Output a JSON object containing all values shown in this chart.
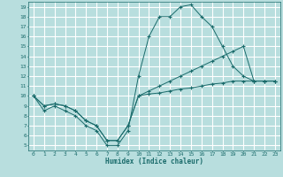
{
  "xlabel": "Humidex (Indice chaleur)",
  "background_color": "#b8dede",
  "grid_color": "#ffffff",
  "line_color": "#1a6b6b",
  "xlim": [
    -0.5,
    23.5
  ],
  "ylim": [
    4.5,
    19.5
  ],
  "xticks": [
    0,
    1,
    2,
    3,
    4,
    5,
    6,
    7,
    8,
    9,
    10,
    11,
    12,
    13,
    14,
    15,
    16,
    17,
    18,
    19,
    20,
    21,
    22,
    23
  ],
  "yticks": [
    5,
    6,
    7,
    8,
    9,
    10,
    11,
    12,
    13,
    14,
    15,
    16,
    17,
    18,
    19
  ],
  "line1_x": [
    0,
    1,
    2,
    3,
    4,
    5,
    6,
    7,
    8,
    9,
    10,
    11,
    12,
    13,
    14,
    15,
    16,
    17,
    18,
    19,
    20,
    21,
    22,
    23
  ],
  "line1_y": [
    10,
    8.5,
    9,
    8.5,
    8,
    7,
    6.5,
    5,
    5,
    6.5,
    12,
    16,
    18,
    18,
    19,
    19.2,
    18,
    17,
    15,
    13,
    12,
    11.5,
    11.5,
    11.5
  ],
  "line2_x": [
    0,
    1,
    2,
    3,
    4,
    5,
    6,
    7,
    8,
    9,
    10,
    11,
    12,
    13,
    14,
    15,
    16,
    17,
    18,
    19,
    20,
    21,
    22,
    23
  ],
  "line2_y": [
    10,
    9,
    9.2,
    9,
    8.5,
    7.5,
    7,
    5.5,
    5.5,
    7,
    10,
    10.5,
    11,
    11.5,
    12,
    12.5,
    13,
    13.5,
    14,
    14.5,
    15,
    11.5,
    11.5,
    11.5
  ],
  "line3_x": [
    0,
    1,
    2,
    3,
    4,
    5,
    6,
    7,
    8,
    9,
    10,
    11,
    12,
    13,
    14,
    15,
    16,
    17,
    18,
    19,
    20,
    21,
    22,
    23
  ],
  "line3_y": [
    10,
    9,
    9.2,
    9,
    8.5,
    7.5,
    7,
    5.5,
    5.5,
    7,
    10,
    10.2,
    10.3,
    10.5,
    10.7,
    10.8,
    11,
    11.2,
    11.3,
    11.5,
    11.5,
    11.5,
    11.5,
    11.5
  ]
}
